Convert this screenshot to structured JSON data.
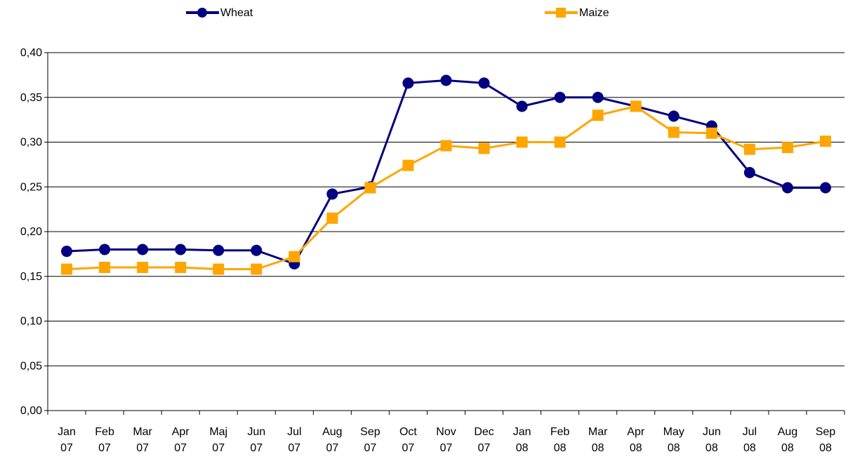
{
  "chart_data": {
    "type": "line",
    "categories": [
      "Jan 07",
      "Feb 07",
      "Mar 07",
      "Apr 07",
      "Maj 07",
      "Jun 07",
      "Jul 07",
      "Aug 07",
      "Sep 07",
      "Oct 07",
      "Nov 07",
      "Dec 07",
      "Jan 08",
      "Feb 08",
      "Mar 08",
      "Apr 08",
      "May 08",
      "Jun 08",
      "Jul 08",
      "Aug 08",
      "Sep 08"
    ],
    "series": [
      {
        "name": "Wheat",
        "color": "#000080",
        "marker": "circle",
        "values": [
          0.178,
          0.18,
          0.18,
          0.18,
          0.179,
          0.179,
          0.164,
          0.242,
          0.25,
          0.366,
          0.369,
          0.366,
          0.34,
          0.35,
          0.35,
          0.34,
          0.329,
          0.318,
          0.266,
          0.249,
          0.249
        ]
      },
      {
        "name": "Maize",
        "color": "#ffa500",
        "marker": "square",
        "values": [
          0.158,
          0.16,
          0.16,
          0.16,
          0.158,
          0.158,
          0.172,
          0.215,
          0.249,
          0.274,
          0.296,
          0.293,
          0.3,
          0.3,
          0.33,
          0.34,
          0.311,
          0.31,
          0.292,
          0.294,
          0.301
        ]
      }
    ],
    "ylim": [
      0,
      0.4
    ],
    "yticks": [
      {
        "value": 0,
        "label": "0,00"
      },
      {
        "value": 0.05,
        "label": "0,05"
      },
      {
        "value": 0.1,
        "label": "0,10"
      },
      {
        "value": 0.15,
        "label": "0,15"
      },
      {
        "value": 0.2,
        "label": "0,20"
      },
      {
        "value": 0.25,
        "label": "0,25"
      },
      {
        "value": 0.3,
        "label": "0,30"
      },
      {
        "value": 0.35,
        "label": "0,35"
      },
      {
        "value": 0.4,
        "label": "0,40"
      }
    ],
    "grid": true,
    "legend": "top"
  }
}
